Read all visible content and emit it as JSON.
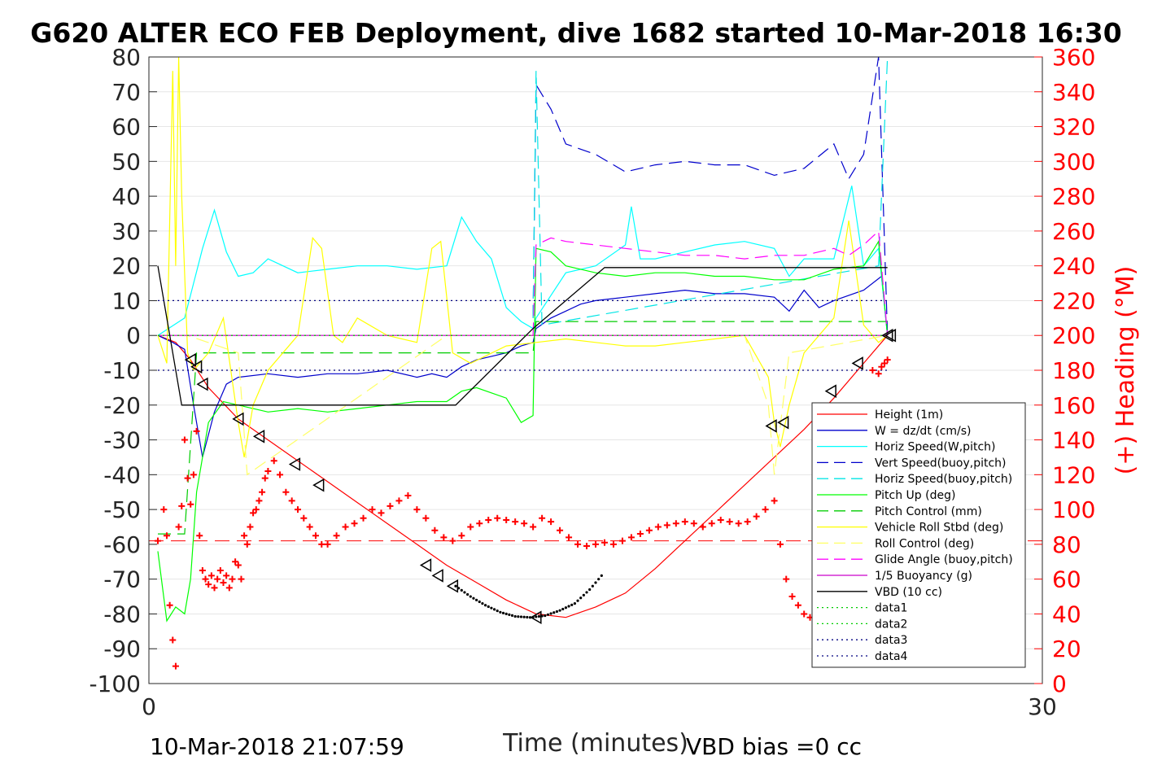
{
  "chart_data": {
    "type": "line",
    "title": "G620 ALTER ECO FEB Deployment, dive 1682 started 10-Mar-2018 16:30",
    "xlabel": "Time (minutes)",
    "ylabel": "",
    "y2label": "(+) Heading (°M)",
    "xlim": [
      0,
      30
    ],
    "ylim": [
      -100,
      80
    ],
    "y2lim": [
      0,
      360
    ],
    "xticks": [
      "0",
      "30"
    ],
    "yticks": [
      "80",
      "70",
      "60",
      "50",
      "40",
      "30",
      "20",
      "10",
      "0",
      "-10",
      "-20",
      "-30",
      "-40",
      "-50",
      "-60",
      "-70",
      "-80",
      "-90",
      "-100"
    ],
    "y2ticks": [
      "360",
      "340",
      "320",
      "300",
      "280",
      "260",
      "240",
      "220",
      "200",
      "180",
      "160",
      "140",
      "120",
      "100",
      "80",
      "60",
      "40",
      "20",
      "0"
    ],
    "grid": true,
    "legend_position": "bottom-right",
    "footer_left": "10-Mar-2018 21:07:59",
    "footer_right": "VBD bias =0 cc",
    "series": [
      {
        "name": "Height (1m)",
        "color": "#ff0000",
        "style": "solid",
        "x": [
          0.3,
          0.9,
          1.4,
          2.0,
          3.0,
          4.0,
          5.0,
          6.0,
          7.0,
          8.0,
          9.0,
          10.0,
          11.0,
          12.0,
          13.0,
          14.0,
          15.0,
          16.0,
          17.0,
          18.0,
          19.0,
          20.0,
          21.0,
          22.0,
          23.0,
          24.0,
          24.8
        ],
        "y": [
          0,
          -2,
          -7,
          -15,
          -24,
          -30,
          -36,
          -42,
          -48,
          -54,
          -60,
          -66,
          -71,
          -76,
          -80,
          -81,
          -78,
          -74,
          -67,
          -59,
          -51,
          -43,
          -35,
          -27,
          -18,
          -8,
          0
        ]
      },
      {
        "name": "W = dz/dt (cm/s)",
        "color": "#0000cc",
        "style": "solid",
        "x": [
          0.3,
          0.8,
          1.2,
          1.5,
          1.8,
          2.2,
          2.6,
          3.0,
          4.0,
          5.0,
          6.0,
          7.0,
          8.0,
          9.0,
          9.5,
          10.0,
          10.5,
          11.0,
          11.5,
          12.0,
          12.5,
          12.9,
          13.0,
          13.5,
          14.0,
          14.5,
          15.0,
          16.0,
          17.0,
          18.0,
          19.0,
          20.0,
          21.0,
          21.5,
          22.0,
          22.5,
          23.0,
          24.0,
          24.6,
          24.8
        ],
        "y": [
          0,
          -2,
          -4,
          -20,
          -35,
          -22,
          -14,
          -12,
          -11,
          -12,
          -11,
          -11,
          -10,
          -12,
          -11,
          -12,
          -9,
          -7,
          -6,
          -5,
          -3,
          -2,
          2,
          5,
          7,
          9,
          10,
          11,
          12,
          13,
          12,
          12,
          11,
          7,
          13,
          8,
          10,
          13,
          17,
          0
        ]
      },
      {
        "name": "Horiz Speed(W,pitch)",
        "color": "#00ffff",
        "style": "solid",
        "x": [
          0.3,
          1.2,
          1.5,
          1.8,
          2.2,
          2.6,
          3.0,
          3.5,
          4.0,
          5.0,
          6.0,
          7.0,
          8.0,
          9.0,
          10.0,
          10.5,
          11.0,
          11.5,
          12.0,
          12.5,
          12.9,
          13.0,
          14.0,
          15.0,
          16.0,
          16.2,
          16.5,
          17.0,
          18.0,
          19.0,
          20.0,
          21.0,
          21.5,
          22.0,
          23.0,
          23.6,
          24.0,
          24.5,
          24.8
        ],
        "y": [
          0,
          5,
          15,
          25,
          36,
          24,
          17,
          18,
          22,
          18,
          19,
          20,
          20,
          19,
          20,
          34,
          27,
          22,
          8,
          4,
          2,
          5,
          18,
          20,
          26,
          37,
          22,
          22,
          24,
          26,
          27,
          25,
          17,
          22,
          22,
          43,
          20,
          25,
          0
        ]
      },
      {
        "name": "Vert Speed(buoy,pitch)",
        "color": "#0000cc",
        "style": "dashed",
        "x": [
          12.9,
          13.0,
          13.5,
          14.0,
          15.0,
          16.0,
          17.0,
          18.0,
          19.0,
          20.0,
          21.0,
          22.0,
          23.0,
          23.5,
          24.0,
          24.5,
          24.8
        ],
        "y": [
          5,
          72,
          65,
          55,
          52,
          47,
          49,
          50,
          49,
          49,
          46,
          48,
          55,
          45,
          52,
          80,
          0
        ]
      },
      {
        "name": "Horiz Speed(buoy,pitch)",
        "color": "#00e5e5",
        "style": "dashed",
        "x": [
          12.9,
          13.0,
          13.2,
          24.5,
          24.8
        ],
        "y": [
          5,
          76,
          3,
          20,
          80
        ]
      },
      {
        "name": "Pitch Up (deg)",
        "color": "#00ff00",
        "style": "solid",
        "x": [
          0.3,
          0.6,
          0.9,
          1.2,
          1.4,
          1.6,
          2.0,
          2.5,
          3.0,
          3.5,
          4.0,
          5.0,
          6.0,
          7.0,
          8.0,
          9.0,
          10.0,
          10.5,
          11.0,
          12.0,
          12.5,
          12.9,
          13.0,
          13.5,
          14.0,
          15.0,
          16.0,
          17.0,
          18.0,
          19.0,
          20.0,
          21.0,
          22.0,
          23.0,
          24.0,
          24.5,
          24.8
        ],
        "y": [
          -62,
          -82,
          -78,
          -80,
          -70,
          -45,
          -25,
          -19,
          -20,
          -21,
          -22,
          -21,
          -22,
          -21,
          -20,
          -19,
          -19,
          -16,
          -15,
          -18,
          -25,
          -23,
          25,
          24,
          20,
          18,
          17,
          18,
          18,
          17,
          17,
          16,
          16,
          19,
          20,
          27,
          0
        ]
      },
      {
        "name": "Pitch Control (mm)",
        "color": "#00cc00",
        "style": "dashed",
        "x": [
          0.3,
          1.2,
          1.6,
          2.0,
          5.0,
          10.0,
          12.9,
          13.0,
          20.0,
          24.8
        ],
        "y": [
          -57,
          -57,
          -5,
          -5,
          -5,
          -5,
          -5,
          4,
          4,
          4
        ]
      },
      {
        "name": "Vehicle Roll Stbd (deg)",
        "color": "#ffff00",
        "style": "solid",
        "x": [
          0.3,
          0.6,
          0.8,
          0.9,
          1.0,
          1.1,
          1.3,
          1.5,
          2.0,
          2.5,
          3.0,
          3.2,
          3.5,
          4.0,
          5.0,
          5.5,
          5.8,
          6.2,
          6.5,
          7.0,
          8.0,
          9.0,
          9.5,
          9.8,
          10.2,
          10.8,
          12.0,
          13.0,
          14.0,
          15.0,
          16.0,
          17.0,
          18.0,
          19.0,
          20.0,
          20.8,
          21.0,
          21.2,
          21.5,
          22.0,
          23.0,
          23.5,
          24.0,
          24.5,
          24.8
        ],
        "y": [
          0,
          -8,
          76,
          20,
          80,
          40,
          -5,
          -10,
          -5,
          5,
          -25,
          -35,
          -20,
          -10,
          0,
          28,
          25,
          0,
          -2,
          5,
          0,
          -2,
          25,
          27,
          -5,
          -8,
          -3,
          -2,
          -1,
          -2,
          -3,
          -3,
          -2,
          -1,
          0,
          -12,
          -25,
          -32,
          -20,
          -5,
          5,
          33,
          3,
          -2,
          0
        ]
      },
      {
        "name": "Roll Control (deg)",
        "color": "#ffff66",
        "style": "dashed",
        "x": [
          0.3,
          1.0,
          1.3,
          3.0,
          3.3,
          10.0,
          13.0,
          20.0,
          20.8,
          21.0,
          21.5,
          24.8
        ],
        "y": [
          0,
          0,
          0,
          -5,
          -40,
          0,
          0,
          0,
          -20,
          -40,
          -5,
          0
        ]
      },
      {
        "name": "Glide Angle (buoy,pitch)",
        "color": "#ff00ff",
        "style": "dashed",
        "x": [
          12.9,
          13.0,
          13.5,
          14.0,
          15.0,
          16.0,
          17.0,
          18.0,
          19.0,
          20.0,
          21.0,
          22.0,
          23.0,
          23.5,
          24.0,
          24.5,
          24.8
        ],
        "y": [
          0,
          26,
          28,
          27,
          26,
          25,
          24,
          23,
          23,
          22,
          23,
          23,
          25,
          23,
          26,
          30,
          0
        ]
      },
      {
        "name": "1/5 Buoyancy (g)",
        "color": "#cc00cc",
        "style": "solid",
        "x": [
          0.3,
          24.8
        ],
        "y": [
          0,
          0
        ]
      },
      {
        "name": "VBD (10 cc)",
        "color": "#000000",
        "style": "solid",
        "x": [
          0.3,
          1.1,
          10.3,
          12.9,
          15.3,
          24.8
        ],
        "y": [
          20,
          -20,
          -20,
          2,
          19.5,
          19.5
        ]
      },
      {
        "name": "data1",
        "color": "#00cc00",
        "style": "dotted",
        "x": [
          0.3,
          24.8
        ],
        "y": [
          0,
          0
        ]
      },
      {
        "name": "data2",
        "color": "#00cc00",
        "style": "dotted",
        "x": [
          0.3,
          24.8
        ],
        "y": [
          0,
          0
        ]
      },
      {
        "name": "data3",
        "color": "#000080",
        "style": "dotted",
        "x": [
          0.3,
          24.8
        ],
        "y": [
          10,
          10
        ]
      },
      {
        "name": "data4",
        "color": "#000080",
        "style": "dotted",
        "x": [
          0.3,
          24.8
        ],
        "y": [
          -10,
          -10
        ]
      }
    ],
    "heading_reference": {
      "axis": "right",
      "value": 82,
      "color": "#ff0000",
      "style": "dashed"
    },
    "heading_points": {
      "axis": "right",
      "color": "#ff0000",
      "marker": "+",
      "x": [
        0.3,
        0.5,
        0.6,
        0.7,
        0.8,
        0.9,
        1.0,
        1.1,
        1.2,
        1.3,
        1.4,
        1.5,
        1.6,
        1.7,
        1.8,
        1.9,
        2.0,
        2.1,
        2.2,
        2.3,
        2.4,
        2.5,
        2.6,
        2.7,
        2.8,
        2.9,
        3.0,
        3.1,
        3.2,
        3.3,
        3.4,
        3.5,
        3.6,
        3.7,
        3.8,
        3.9,
        4.0,
        4.2,
        4.4,
        4.6,
        4.8,
        5.0,
        5.2,
        5.4,
        5.6,
        5.8,
        6.0,
        6.3,
        6.6,
        6.9,
        7.2,
        7.5,
        7.8,
        8.1,
        8.4,
        8.7,
        9.0,
        9.3,
        9.6,
        9.9,
        10.2,
        10.5,
        10.8,
        11.1,
        11.4,
        11.7,
        12.0,
        12.3,
        12.6,
        12.9,
        13.2,
        13.5,
        13.8,
        14.1,
        14.4,
        14.7,
        15.0,
        15.3,
        15.6,
        15.9,
        16.2,
        16.5,
        16.8,
        17.1,
        17.4,
        17.7,
        18.0,
        18.3,
        18.6,
        18.9,
        19.2,
        19.5,
        19.8,
        20.1,
        20.4,
        20.7,
        21.0,
        21.2,
        21.4,
        21.6,
        21.8,
        22.0,
        22.2,
        22.4,
        22.6,
        22.8,
        24.3,
        24.5,
        24.6,
        24.7,
        24.8
      ],
      "y": [
        82,
        100,
        85,
        45,
        25,
        10,
        90,
        102,
        140,
        118,
        103,
        120,
        145,
        85,
        65,
        60,
        57,
        62,
        55,
        60,
        65,
        58,
        62,
        55,
        60,
        70,
        68,
        60,
        85,
        80,
        90,
        98,
        100,
        105,
        110,
        118,
        122,
        128,
        120,
        110,
        105,
        100,
        95,
        90,
        85,
        80,
        80,
        85,
        90,
        92,
        95,
        100,
        98,
        102,
        105,
        108,
        100,
        95,
        88,
        84,
        82,
        85,
        90,
        92,
        94,
        95,
        94,
        93,
        92,
        90,
        95,
        93,
        88,
        84,
        80,
        79,
        80,
        81,
        80,
        82,
        84,
        86,
        88,
        90,
        91,
        92,
        93,
        92,
        90,
        92,
        94,
        93,
        92,
        93,
        96,
        100,
        105,
        80,
        60,
        50,
        45,
        40,
        38,
        36,
        34,
        32,
        180,
        178,
        182,
        184,
        186
      ]
    },
    "triangle_points": {
      "color": "#000000",
      "x": [
        1.4,
        1.6,
        1.8,
        3.0,
        3.7,
        4.9,
        5.7,
        9.3,
        9.7,
        10.2,
        13.0,
        20.9,
        21.3,
        22.9,
        23.8,
        24.8,
        24.9
      ],
      "y": [
        -7,
        -9,
        -14,
        -24,
        -29,
        -37,
        -43,
        -66,
        -69,
        -72,
        -81,
        -26,
        -25,
        -16,
        -8,
        0,
        0
      ]
    },
    "bottom_dots": {
      "color": "#000000",
      "x": [
        10.3,
        10.8,
        11.3,
        11.8,
        12.3,
        12.8,
        13.3,
        13.8,
        14.3,
        14.8,
        15.3
      ],
      "y": [
        -72,
        -75,
        -77.5,
        -79.5,
        -80.7,
        -81,
        -80.5,
        -79,
        -77,
        -73,
        -68
      ]
    }
  }
}
